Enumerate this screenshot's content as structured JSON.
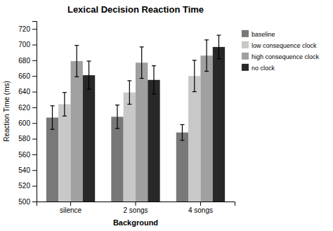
{
  "chart_data": {
    "type": "bar",
    "title": "Lexical Decision Reaction Time",
    "xlabel": "Background",
    "ylabel": "Reaction Time (ms)",
    "categories": [
      "silence",
      "2 songs",
      "4 songs"
    ],
    "series": [
      {
        "name": "baseline",
        "color": "#787878",
        "values": [
          607,
          608,
          588
        ],
        "errors": [
          15,
          15,
          10
        ]
      },
      {
        "name": "low consequence clock",
        "color": "#c8c8c8",
        "values": [
          624,
          639,
          660
        ],
        "errors": [
          15,
          15,
          20
        ]
      },
      {
        "name": "high consequence clock",
        "color": "#a0a0a0",
        "values": [
          679,
          677,
          686
        ],
        "errors": [
          20,
          20,
          20
        ]
      },
      {
        "name": "no clock",
        "color": "#282828",
        "values": [
          661,
          655,
          697
        ],
        "errors": [
          18,
          18,
          15
        ]
      }
    ],
    "ylim": [
      500,
      730
    ],
    "yticks": [
      500,
      520,
      540,
      560,
      580,
      600,
      620,
      640,
      660,
      680,
      700,
      720
    ],
    "grid": false,
    "legend": "right"
  }
}
